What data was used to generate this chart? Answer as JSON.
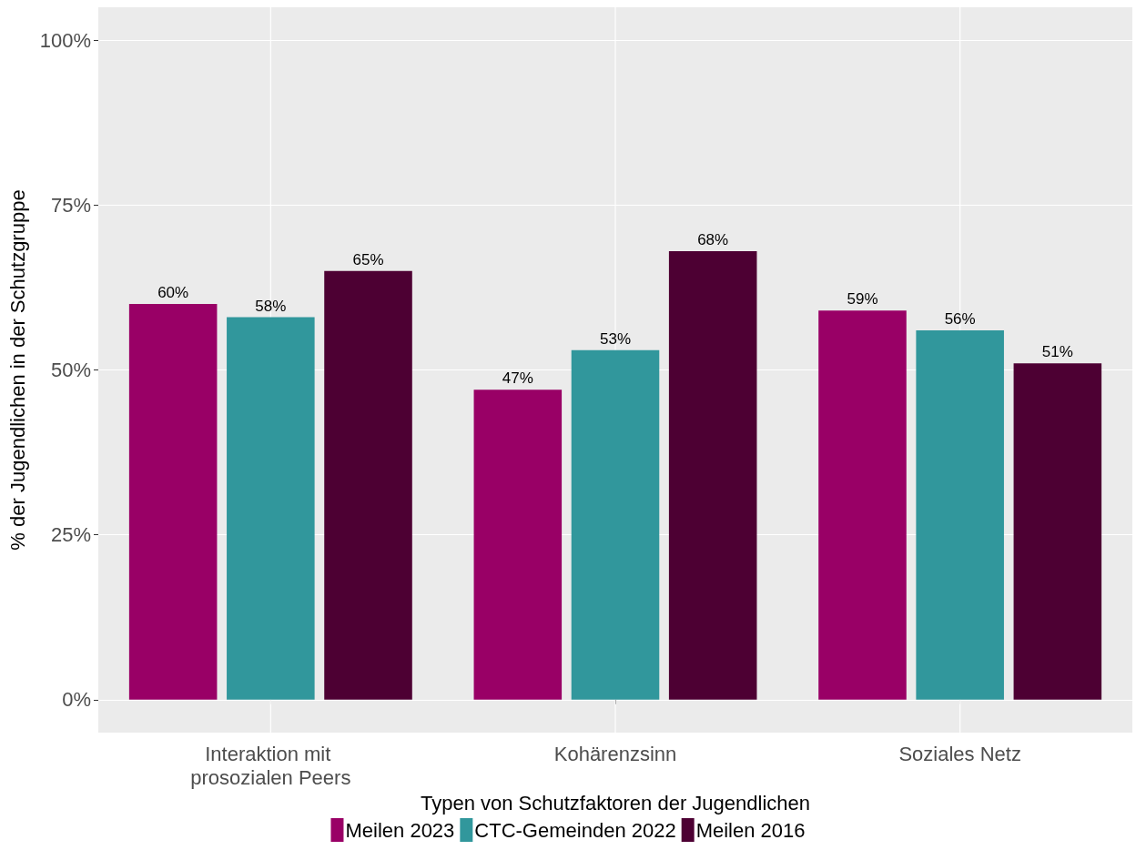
{
  "chart_data": {
    "type": "bar",
    "xlabel": "Typen von Schutzfaktoren der Jugendlichen",
    "ylabel": "% der Jugendlichen in der Schutzgruppe",
    "categories": [
      "Interaktion mit prosozialen Peers",
      "Kohärenzsinn",
      "Soziales Netz"
    ],
    "series": [
      {
        "name": "Meilen 2023",
        "color": "#990066",
        "values": [
          60,
          47,
          59
        ],
        "value_labels": [
          "60%",
          "47%",
          "59%"
        ]
      },
      {
        "name": "CTC-Gemeinden 2022",
        "color": "#31979c",
        "values": [
          58,
          53,
          56
        ],
        "value_labels": [
          "58%",
          "53%",
          "56%"
        ]
      },
      {
        "name": "Meilen 2016",
        "color": "#4d0033",
        "values": [
          65,
          68,
          51
        ],
        "value_labels": [
          "65%",
          "68%",
          "51%"
        ]
      }
    ],
    "ylim": [
      -5,
      105
    ],
    "yticks": [
      {
        "value": 0,
        "label": "0%"
      },
      {
        "value": 25,
        "label": "25%"
      },
      {
        "value": 50,
        "label": "50%"
      },
      {
        "value": 75,
        "label": "75%"
      },
      {
        "value": 100,
        "label": "100%"
      }
    ],
    "grid": true,
    "legend": "bottom"
  }
}
